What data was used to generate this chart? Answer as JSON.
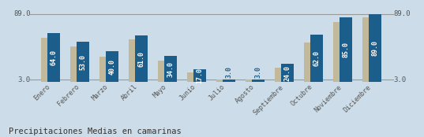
{
  "title": "Precipitaciones Medias en camarinas",
  "months": [
    "Enero",
    "Febrero",
    "Marzo",
    "Abril",
    "Mayo",
    "Junio",
    "Julio",
    "Agosto",
    "Septiembre",
    "Octubre",
    "Noviembre",
    "Diciembre"
  ],
  "values": [
    64.0,
    53.0,
    40.0,
    61.0,
    34.0,
    17.0,
    3.0,
    3.0,
    24.0,
    62.0,
    85.0,
    89.0
  ],
  "bg_values": [
    58.0,
    47.0,
    33.0,
    56.0,
    28.0,
    13.0,
    3.0,
    3.0,
    19.0,
    52.0,
    78.0,
    84.0
  ],
  "bar_color": "#1b5e8b",
  "bg_bar_color": "#c2b89a",
  "background_color": "#ccdde9",
  "label_color": "#ffffff",
  "hline_color": "#999999",
  "axis_label_color": "#555555",
  "tick_color": "#555555",
  "ymax_label": "89.0",
  "ymin_label": "3.0",
  "ymax": 89.0,
  "ymin": 3.0,
  "title_fontsize": 7.5,
  "label_fontsize": 6.0,
  "tick_fontsize": 6.0
}
